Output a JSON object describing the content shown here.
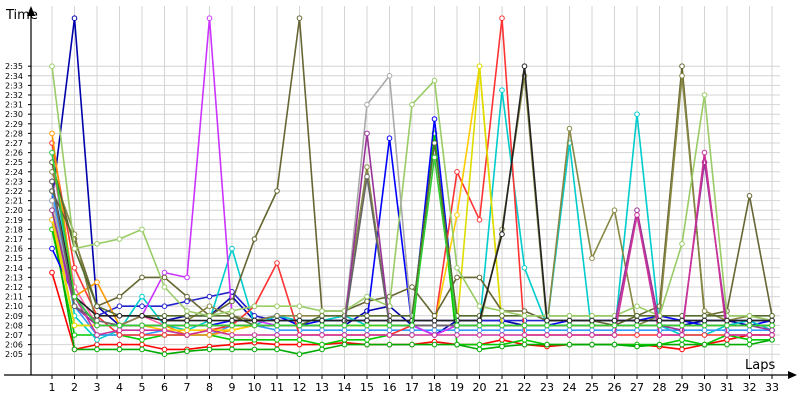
{
  "chart_data": {
    "type": "line",
    "xlabel": "Laps",
    "ylabel": "Time",
    "x": [
      1,
      2,
      3,
      4,
      5,
      6,
      7,
      8,
      9,
      10,
      11,
      12,
      13,
      14,
      15,
      16,
      17,
      18,
      19,
      20,
      21,
      22,
      23,
      24,
      25,
      26,
      27,
      28,
      29,
      30,
      31,
      32,
      33
    ],
    "xlim": [
      0,
      33
    ],
    "ylim_seconds": [
      124,
      156
    ],
    "y_tick_labels": [
      "2:05",
      "2:06",
      "2:07",
      "2:08",
      "2:09",
      "2:10",
      "2:11",
      "2:12",
      "2:13",
      "2:14",
      "2:15",
      "2:16",
      "2:17",
      "2:18",
      "2:19",
      "2:20",
      "2:21",
      "2:22",
      "2:23",
      "2:24",
      "2:25",
      "2:26",
      "2:27",
      "2:28",
      "2:29",
      "2:30",
      "2:31",
      "2:32",
      "2:33",
      "2:34",
      "2:35"
    ],
    "x_tick_labels": [
      "1",
      "2",
      "3",
      "4",
      "5",
      "6",
      "7",
      "8",
      "9",
      "10",
      "11",
      "12",
      "13",
      "14",
      "15",
      "16",
      "17",
      "18",
      "19",
      "20",
      "21",
      "22",
      "23",
      "24",
      "25",
      "26",
      "27",
      "28",
      "29",
      "30",
      "31",
      "32",
      "33"
    ],
    "grid": true,
    "legend": "none",
    "series": [
      {
        "color": "#ff0000",
        "values": [
          133.5,
          125.5,
          126,
          126,
          126,
          125.5,
          125.5,
          125.8,
          126,
          126.2,
          126,
          126,
          126,
          126.2,
          126,
          126,
          126,
          126.3,
          126,
          126,
          126.5,
          126,
          125.8,
          126,
          126,
          126,
          126,
          125.8,
          125.5,
          126,
          126.5,
          127,
          127
        ]
      },
      {
        "color": "#00cc00",
        "values": [
          138,
          127,
          127,
          127,
          126.5,
          127,
          127,
          127,
          126.5,
          126.5,
          126.5,
          126.5,
          126,
          126.5,
          126.5,
          127,
          127,
          148,
          126,
          126,
          126,
          126.5,
          126,
          126,
          126,
          126,
          126,
          126,
          126.5,
          126,
          127,
          126.5,
          126.5
        ]
      },
      {
        "color": "#00aa00",
        "values": [
          139,
          125.5,
          125.5,
          125.5,
          125.5,
          125,
          125.3,
          125.5,
          125.5,
          125.5,
          125.5,
          125,
          125.5,
          126,
          126,
          126,
          126,
          126,
          126,
          125.5,
          125.8,
          126,
          126,
          126,
          126,
          126,
          125.8,
          126,
          126,
          126,
          126,
          126,
          126.5
        ]
      },
      {
        "color": "#0000aa",
        "values": [
          141,
          160,
          130,
          128,
          129,
          128.5,
          129,
          129,
          131,
          128.5,
          129,
          128,
          128,
          128,
          129.5,
          130,
          128,
          127,
          128.5,
          128.5,
          128.5,
          128,
          128,
          128,
          128,
          128,
          128,
          128,
          128,
          128.5,
          128.5,
          128,
          128
        ]
      },
      {
        "color": "#0000ff",
        "values": [
          136,
          131,
          128,
          128,
          128,
          128,
          128,
          128,
          128.5,
          128.5,
          129,
          128,
          128.5,
          128.5,
          128.5,
          147.5,
          128,
          149.5,
          128,
          128,
          128,
          128,
          128,
          128.5,
          128.5,
          128.5,
          128.5,
          129,
          128.5,
          128,
          128,
          128,
          128.5
        ]
      },
      {
        "color": "#2222cc",
        "values": [
          142,
          131,
          129,
          130,
          130,
          130,
          130.5,
          131,
          131.5,
          129,
          128.5,
          128.5,
          128.5,
          128.5,
          128.5,
          128.5,
          128.5,
          128.5,
          128.5,
          128.5,
          128.5,
          128.5,
          128.5,
          128.5,
          128.5,
          128.5,
          128.5,
          128.5,
          128.5,
          128.5,
          128.5,
          128.5,
          128.5
        ]
      },
      {
        "color": "#00cccc",
        "values": [
          146,
          129,
          126.5,
          127.5,
          131,
          128,
          127.5,
          128.5,
          136,
          128,
          129,
          128.5,
          128.5,
          129,
          128,
          128,
          128,
          128,
          128,
          128,
          152.5,
          134,
          128,
          147,
          127,
          127,
          150,
          128,
          127,
          127,
          128,
          128.5,
          127.5
        ]
      },
      {
        "color": "#3399ff",
        "values": [
          142,
          130,
          127,
          127,
          127,
          127.5,
          127,
          127,
          128,
          128,
          127.5,
          127.5,
          127.5,
          127.5,
          127.5,
          127.5,
          127.5,
          127.5,
          127.5,
          127.5,
          127.5,
          127.5,
          127.5,
          127.5,
          127.5,
          127.5,
          127.5,
          127.5,
          127.5,
          127.5,
          127.5,
          127.5,
          127.5
        ]
      },
      {
        "color": "#cc33ff",
        "values": [
          139,
          130,
          128,
          128,
          129,
          133.5,
          133,
          160,
          129,
          128.5,
          128,
          128,
          128,
          128,
          128,
          128,
          128,
          127,
          128,
          128,
          128,
          128,
          128,
          128,
          128,
          128,
          128,
          128,
          128,
          128,
          128,
          128,
          128
        ]
      },
      {
        "color": "#ff66aa",
        "values": [
          145,
          132,
          128,
          128,
          129,
          128,
          128,
          128,
          128,
          128,
          128,
          128,
          128,
          128,
          128,
          128,
          128,
          128,
          128,
          128,
          128,
          128,
          128,
          128,
          128,
          128,
          128,
          128,
          128,
          128,
          128,
          128,
          128
        ]
      },
      {
        "color": "#ff3333",
        "values": [
          147,
          134,
          129,
          127,
          127,
          127,
          127,
          127.5,
          128,
          130,
          134.5,
          127,
          127,
          127,
          127,
          127,
          128,
          128,
          144,
          139,
          160,
          127,
          127,
          127,
          127,
          127,
          127,
          127,
          127,
          127,
          127,
          127,
          127
        ]
      },
      {
        "color": "#ff9900",
        "values": [
          148,
          131,
          132.5,
          128,
          128,
          128,
          127,
          127,
          127.5,
          128,
          128,
          128,
          128,
          128,
          128,
          128,
          128,
          128,
          128,
          128,
          128,
          128,
          128,
          128,
          128,
          128,
          128,
          128,
          128,
          128,
          128,
          128,
          128
        ]
      },
      {
        "color": "#ffcc00",
        "values": [
          139,
          128,
          128,
          128,
          128,
          127.5,
          127.5,
          127.5,
          127.5,
          128,
          128,
          128,
          128,
          128,
          128,
          128,
          128,
          128,
          139.5,
          155,
          128,
          128,
          128,
          128,
          128,
          128,
          128,
          128,
          128,
          128,
          128,
          128,
          128
        ]
      },
      {
        "color": "#dddd00",
        "values": [
          140,
          128,
          128,
          128,
          128,
          128,
          128,
          128,
          128,
          128,
          128,
          128,
          128,
          128,
          128,
          128,
          128,
          128,
          128,
          155,
          128,
          128,
          128,
          128,
          128,
          128,
          128,
          128,
          128,
          128,
          128,
          128,
          128
        ]
      },
      {
        "color": "#666633",
        "values": [
          142,
          137,
          130,
          131,
          133,
          133,
          131,
          129,
          130.5,
          137,
          142,
          160,
          129.5,
          129.5,
          130.5,
          131,
          132,
          129,
          133,
          133,
          129.5,
          129.5,
          128.5,
          128.5,
          128.5,
          128,
          129,
          130,
          155,
          129,
          129.5,
          141.5,
          129
        ]
      },
      {
        "color": "#888844",
        "values": [
          144,
          137.5,
          128,
          128,
          129,
          128.5,
          128.5,
          130,
          129,
          128.5,
          129,
          129,
          129,
          129,
          144.5,
          128,
          128,
          128,
          128,
          128,
          138,
          154,
          128,
          148.5,
          135,
          140,
          128,
          129,
          154,
          129.5,
          128.5,
          129,
          128.5
        ]
      },
      {
        "color": "#556b2f",
        "values": [
          145,
          136,
          130,
          129,
          129,
          129,
          129,
          129,
          129,
          128,
          128,
          128,
          129,
          129,
          129,
          129,
          129,
          147,
          129,
          129,
          129,
          129,
          129,
          129,
          129,
          129,
          129,
          129,
          129,
          129,
          129,
          129,
          129
        ]
      },
      {
        "color": "#99cc66",
        "values": [
          155,
          136,
          136.5,
          137,
          138,
          132,
          129.5,
          129,
          129.5,
          130,
          130,
          130,
          129.5,
          129.5,
          131,
          130,
          151,
          153.5,
          134,
          130,
          129.5,
          129,
          129,
          129,
          129,
          129,
          130,
          129,
          136.5,
          152,
          129,
          129,
          128.5
        ]
      },
      {
        "color": "#aaaaaa",
        "values": [
          141,
          130,
          128,
          128,
          128,
          128,
          128,
          128,
          128,
          128,
          128,
          128,
          128,
          128,
          151,
          154,
          128,
          128,
          128,
          128,
          128,
          128,
          128,
          128,
          128,
          128,
          128,
          128,
          128,
          128,
          128,
          128,
          128
        ]
      },
      {
        "color": "#993399",
        "values": [
          140,
          130,
          128,
          128,
          128,
          128,
          128,
          128,
          128,
          128,
          128,
          128,
          128,
          128,
          148,
          128,
          128,
          128,
          128,
          128,
          128,
          128,
          128,
          128,
          128,
          128,
          140,
          128,
          127.5,
          145,
          128,
          128,
          127.5
        ]
      },
      {
        "color": "#cc3399",
        "values": [
          143,
          131,
          127,
          127.5,
          127.5,
          127.5,
          127,
          127.5,
          127,
          127,
          127,
          127,
          127,
          127,
          127,
          127,
          127,
          127,
          127,
          127,
          127,
          127,
          127,
          127,
          127,
          127,
          139.5,
          127,
          127,
          146,
          127,
          127,
          127
        ]
      },
      {
        "color": "#222222",
        "values": [
          143,
          131,
          129,
          129,
          129,
          128.5,
          128.5,
          128.5,
          128.5,
          128.5,
          128.5,
          128.5,
          128.5,
          128.5,
          128.5,
          128.5,
          128.5,
          128.5,
          128.5,
          128.5,
          137.5,
          155,
          128.5,
          128.5,
          128.5,
          128.5,
          128.5,
          128.5,
          128.5,
          128.5,
          128.5,
          128.5,
          128.5
        ]
      },
      {
        "color": "#666666",
        "values": [
          143,
          130,
          128.5,
          128,
          128,
          128,
          128,
          128,
          128,
          128,
          128,
          128,
          128,
          128,
          143.5,
          128,
          128,
          128,
          128,
          128,
          128,
          128,
          128,
          128,
          128,
          128,
          128,
          128,
          128,
          128,
          128,
          128,
          128
        ]
      },
      {
        "color": "#33cc33",
        "values": [
          146,
          131,
          128,
          128,
          128,
          128,
          128,
          128,
          128,
          128,
          128,
          128,
          128,
          128,
          128,
          128,
          128,
          145.5,
          128,
          128,
          128,
          128,
          128,
          128,
          128,
          128,
          128,
          128,
          128,
          128,
          128,
          128,
          128
        ]
      }
    ]
  }
}
